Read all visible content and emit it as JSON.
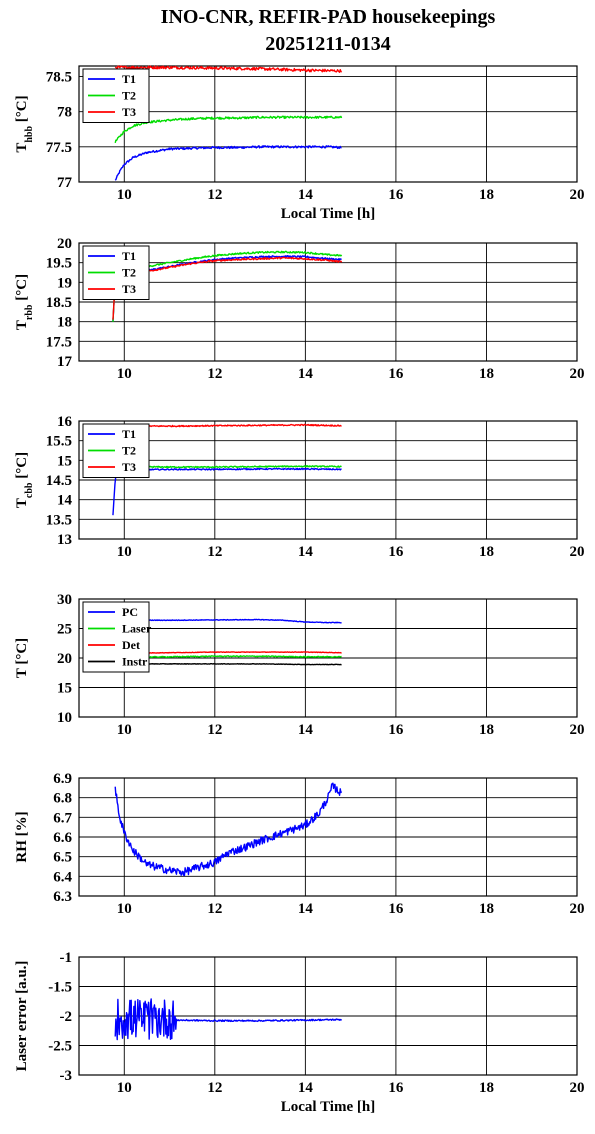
{
  "title": "INO-CNR, REFIR-PAD housekeepings",
  "subtitle": "20251211-0134",
  "chart_data": [
    {
      "type": "line",
      "ylabel": "T_hbb [°C]",
      "xlabel": "Local Time [h]",
      "xlim": [
        9,
        20
      ],
      "ylim": [
        77,
        78.65
      ],
      "xticks": [
        10,
        12,
        14,
        16,
        18,
        20
      ],
      "yticks": [
        77,
        77.5,
        78,
        78.5
      ],
      "ytick_labels": [
        "77",
        "77.5",
        "78",
        "78.5"
      ],
      "grid": true,
      "legend": "top-left",
      "series": [
        {
          "name": "T1",
          "color": "#0000ff",
          "x": [
            9.8,
            9.9,
            10.0,
            10.2,
            10.5,
            11.0,
            11.5,
            12.0,
            12.5,
            13.0,
            13.5,
            14.0,
            14.5,
            14.8
          ],
          "y": [
            77.02,
            77.15,
            77.25,
            77.35,
            77.42,
            77.47,
            77.48,
            77.49,
            77.49,
            77.5,
            77.5,
            77.5,
            77.5,
            77.49
          ],
          "noise": 0.015
        },
        {
          "name": "T2",
          "color": "#00dd00",
          "x": [
            9.8,
            9.9,
            10.0,
            10.2,
            10.5,
            11.0,
            11.5,
            12.0,
            12.5,
            13.0,
            13.5,
            14.0,
            14.5,
            14.8
          ],
          "y": [
            77.57,
            77.65,
            77.72,
            77.8,
            77.85,
            77.88,
            77.9,
            77.91,
            77.91,
            77.92,
            77.92,
            77.92,
            77.92,
            77.92
          ],
          "noise": 0.015
        },
        {
          "name": "T3",
          "color": "#ff0000",
          "x": [
            9.8,
            10.5,
            11.0,
            12.0,
            13.0,
            14.0,
            14.8
          ],
          "y": [
            78.63,
            78.63,
            78.63,
            78.62,
            78.61,
            78.59,
            78.58
          ],
          "noise": 0.02
        }
      ]
    },
    {
      "type": "line",
      "ylabel": "T_rbb [°C]",
      "xlabel": "",
      "xlim": [
        9,
        20
      ],
      "ylim": [
        17,
        20
      ],
      "xticks": [
        10,
        12,
        14,
        16,
        18,
        20
      ],
      "yticks": [
        17,
        17.5,
        18,
        18.5,
        19,
        19.5,
        20
      ],
      "ytick_labels": [
        "17",
        "17.5",
        "18",
        "18.5",
        "19",
        "19.5",
        "20"
      ],
      "grid": true,
      "legend": "top-left",
      "series": [
        {
          "name": "T1",
          "color": "#0000ff",
          "x": [
            9.75,
            9.8,
            9.85,
            10.0,
            10.5,
            11.0,
            11.5,
            12.0,
            12.5,
            13.0,
            13.5,
            14.0,
            14.5,
            14.8
          ],
          "y": [
            18.0,
            19.0,
            19.12,
            19.2,
            19.3,
            19.4,
            19.5,
            19.58,
            19.62,
            19.65,
            19.66,
            19.65,
            19.6,
            19.58
          ],
          "noise": 0.02
        },
        {
          "name": "T2",
          "color": "#00dd00",
          "x": [
            9.75,
            9.8,
            9.85,
            10.0,
            10.5,
            11.0,
            11.5,
            12.0,
            12.5,
            13.0,
            13.5,
            14.0,
            14.5,
            14.8
          ],
          "y": [
            18.0,
            19.1,
            19.2,
            19.28,
            19.4,
            19.5,
            19.6,
            19.68,
            19.73,
            19.76,
            19.77,
            19.76,
            19.7,
            19.68
          ],
          "noise": 0.02
        },
        {
          "name": "T3",
          "color": "#ff0000",
          "x": [
            9.75,
            9.8,
            9.85,
            10.0,
            10.5,
            11.0,
            11.5,
            12.0,
            12.5,
            13.0,
            13.5,
            14.0,
            14.5,
            14.8
          ],
          "y": [
            18.05,
            19.05,
            19.12,
            19.18,
            19.28,
            19.38,
            19.48,
            19.55,
            19.58,
            19.6,
            19.62,
            19.6,
            19.56,
            19.52
          ],
          "noise": 0.02
        }
      ]
    },
    {
      "type": "line",
      "ylabel": "T_cbb [°C]",
      "xlabel": "",
      "xlim": [
        9,
        20
      ],
      "ylim": [
        13,
        16
      ],
      "xticks": [
        10,
        12,
        14,
        16,
        18,
        20
      ],
      "yticks": [
        13,
        13.5,
        14,
        14.5,
        15,
        15.5,
        16
      ],
      "ytick_labels": [
        "13",
        "13.5",
        "14",
        "14.5",
        "15",
        "15.5",
        "16"
      ],
      "grid": true,
      "legend": "top-left",
      "series": [
        {
          "name": "T1",
          "color": "#0000ff",
          "x": [
            9.75,
            9.8,
            9.85,
            10.0,
            11.0,
            12.0,
            13.0,
            14.0,
            14.8
          ],
          "y": [
            13.6,
            14.5,
            14.72,
            14.76,
            14.77,
            14.77,
            14.78,
            14.78,
            14.77
          ],
          "noise": 0.015
        },
        {
          "name": "T2",
          "color": "#00dd00",
          "x": [
            9.8,
            10.0,
            11.0,
            12.0,
            13.0,
            14.0,
            14.8
          ],
          "y": [
            14.85,
            14.84,
            14.83,
            14.83,
            14.84,
            14.85,
            14.84
          ],
          "noise": 0.015
        },
        {
          "name": "T3",
          "color": "#ff0000",
          "x": [
            9.8,
            10.0,
            11.0,
            12.0,
            13.0,
            14.0,
            14.8
          ],
          "y": [
            15.86,
            15.87,
            15.87,
            15.88,
            15.89,
            15.9,
            15.88
          ],
          "noise": 0.015
        }
      ]
    },
    {
      "type": "line",
      "ylabel": "T [°C]",
      "xlabel": "",
      "xlim": [
        9,
        20
      ],
      "ylim": [
        10,
        30
      ],
      "xticks": [
        10,
        12,
        14,
        16,
        18,
        20
      ],
      "yticks": [
        10,
        15,
        20,
        25,
        30
      ],
      "ytick_labels": [
        "10",
        "15",
        "20",
        "25",
        "30"
      ],
      "grid": true,
      "legend": "top-left",
      "series": [
        {
          "name": "PC",
          "color": "#0000ff",
          "x": [
            9.8,
            11.0,
            12.0,
            13.0,
            13.5,
            14.0,
            14.5,
            14.8
          ],
          "y": [
            26.4,
            26.4,
            26.45,
            26.5,
            26.4,
            26.1,
            26.0,
            26.0
          ],
          "noise": 0.05
        },
        {
          "name": "Laser",
          "color": "#00dd00",
          "x": [
            9.8,
            11.0,
            12.0,
            13.0,
            14.0,
            14.8
          ],
          "y": [
            20.1,
            20.2,
            20.3,
            20.3,
            20.2,
            20.2
          ],
          "noise": 0.08
        },
        {
          "name": "Det",
          "color": "#ff0000",
          "x": [
            9.8,
            11.0,
            12.0,
            13.0,
            14.0,
            14.8
          ],
          "y": [
            20.8,
            20.9,
            21.0,
            21.0,
            21.0,
            20.9
          ],
          "noise": 0.04
        },
        {
          "name": "Instr",
          "color": "#000000",
          "x": [
            9.8,
            11.0,
            12.0,
            13.0,
            14.0,
            14.8
          ],
          "y": [
            19.0,
            19.0,
            19.0,
            19.0,
            18.9,
            18.9
          ],
          "noise": 0.04
        }
      ]
    },
    {
      "type": "line",
      "ylabel": "RH [%]",
      "xlabel": "",
      "xlim": [
        9,
        20
      ],
      "ylim": [
        6.3,
        6.9
      ],
      "xticks": [
        10,
        12,
        14,
        16,
        18,
        20
      ],
      "yticks": [
        6.3,
        6.4,
        6.5,
        6.6,
        6.7,
        6.8,
        6.9
      ],
      "ytick_labels": [
        "6.3",
        "6.4",
        "6.5",
        "6.6",
        "6.7",
        "6.8",
        "6.9"
      ],
      "grid": true,
      "legend": "none",
      "series": [
        {
          "name": "",
          "color": "#0000ff",
          "x": [
            9.8,
            9.9,
            10.0,
            10.2,
            10.5,
            11.0,
            11.3,
            11.7,
            12.0,
            12.3,
            12.7,
            13.0,
            13.5,
            14.0,
            14.3,
            14.5,
            14.6,
            14.7,
            14.8
          ],
          "y": [
            6.84,
            6.7,
            6.62,
            6.53,
            6.46,
            6.43,
            6.42,
            6.45,
            6.47,
            6.52,
            6.55,
            6.58,
            6.62,
            6.66,
            6.72,
            6.8,
            6.86,
            6.84,
            6.82
          ],
          "noise": 0.02
        }
      ]
    },
    {
      "type": "line",
      "ylabel": "Laser error [a.u.]",
      "xlabel": "Local Time [h]",
      "xlim": [
        9,
        20
      ],
      "ylim": [
        -3,
        -1
      ],
      "xticks": [
        10,
        12,
        14,
        16,
        18,
        20
      ],
      "yticks": [
        -3,
        -2.5,
        -2,
        -1.5,
        -1
      ],
      "ytick_labels": [
        "-3",
        "-2.5",
        "-2",
        "-1.5",
        "-1"
      ],
      "grid": true,
      "legend": "none",
      "series": [
        {
          "name": "",
          "color": "#0000ff",
          "x": [
            9.8,
            10.0,
            10.5,
            11.0,
            11.2,
            12.0,
            13.0,
            14.0,
            14.8
          ],
          "y": [
            -2.05,
            -2.05,
            -2.05,
            -2.05,
            -2.07,
            -2.08,
            -2.08,
            -2.07,
            -2.06
          ],
          "noise": 0.012,
          "burst_range": [
            9.8,
            11.15
          ],
          "burst_amp": 0.35
        }
      ]
    }
  ]
}
